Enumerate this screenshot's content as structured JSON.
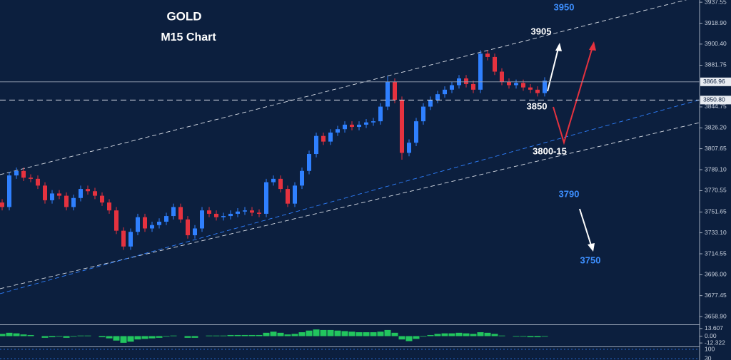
{
  "chart_data": {
    "type": "candlestick",
    "title": "GOLD",
    "subtitle": "M15 Chart",
    "open": [
      3760,
      3756,
      3784,
      3788,
      3782,
      3781,
      3775,
      3762,
      3768,
      3766,
      3756,
      3764,
      3772,
      3770,
      3766,
      3760,
      3753,
      3735,
      3721,
      3734,
      3747,
      3737,
      3740,
      3743,
      3748,
      3756,
      3745,
      3731,
      3737,
      3753,
      3750,
      3747,
      3748,
      3750,
      3752,
      3753,
      3751,
      3750,
      3778,
      3781,
      3772,
      3759,
      3775,
      3788,
      3803,
      3819,
      3814,
      3822,
      3825,
      3829,
      3827,
      3829,
      3831,
      3832,
      3845,
      3867,
      3851,
      3804,
      3813,
      3832,
      3845,
      3851,
      3856,
      3860,
      3864,
      3870,
      3865,
      3860,
      3892,
      3889,
      3876,
      3867,
      3864,
      3866,
      3862,
      3860,
      3857
    ],
    "high": [
      3763,
      3787,
      3791,
      3791,
      3785,
      3784,
      3778,
      3771,
      3771,
      3769,
      3767,
      3775,
      3775,
      3773,
      3769,
      3763,
      3756,
      3738,
      3737,
      3750,
      3750,
      3743,
      3746,
      3751,
      3759,
      3759,
      3748,
      3740,
      3756,
      3756,
      3753,
      3751,
      3753,
      3755,
      3756,
      3756,
      3754,
      3781,
      3784,
      3784,
      3775,
      3778,
      3791,
      3806,
      3822,
      3822,
      3825,
      3828,
      3832,
      3832,
      3832,
      3834,
      3835,
      3848,
      3872,
      3870,
      3854,
      3816,
      3835,
      3848,
      3854,
      3859,
      3863,
      3867,
      3873,
      3873,
      3868,
      3895,
      3895,
      3892,
      3879,
      3870,
      3869,
      3869,
      3865,
      3863,
      3871
    ],
    "low": [
      3753,
      3753,
      3781,
      3779,
      3778,
      3772,
      3759,
      3759,
      3763,
      3753,
      3753,
      3761,
      3767,
      3763,
      3757,
      3750,
      3732,
      3718,
      3718,
      3731,
      3734,
      3734,
      3737,
      3740,
      3745,
      3742,
      3728,
      3728,
      3734,
      3747,
      3744,
      3744,
      3745,
      3747,
      3749,
      3748,
      3747,
      3747,
      3775,
      3769,
      3756,
      3756,
      3772,
      3785,
      3800,
      3811,
      3811,
      3819,
      3822,
      3824,
      3824,
      3826,
      3828,
      3829,
      3842,
      3848,
      3798,
      3801,
      3810,
      3829,
      3842,
      3848,
      3853,
      3857,
      3861,
      3862,
      3857,
      3857,
      3886,
      3873,
      3864,
      3861,
      3861,
      3859,
      3857,
      3854,
      3854
    ],
    "close": [
      3756,
      3784,
      3788,
      3782,
      3781,
      3775,
      3762,
      3768,
      3766,
      3756,
      3764,
      3772,
      3770,
      3766,
      3760,
      3753,
      3735,
      3721,
      3734,
      3747,
      3737,
      3740,
      3743,
      3748,
      3756,
      3745,
      3731,
      3737,
      3753,
      3750,
      3747,
      3748,
      3750,
      3752,
      3753,
      3751,
      3750,
      3778,
      3781,
      3772,
      3759,
      3775,
      3788,
      3803,
      3819,
      3814,
      3822,
      3825,
      3829,
      3827,
      3829,
      3831,
      3832,
      3845,
      3867,
      3851,
      3804,
      3813,
      3832,
      3845,
      3851,
      3856,
      3860,
      3864,
      3870,
      3865,
      3860,
      3892,
      3889,
      3876,
      3867,
      3864,
      3866,
      3862,
      3860,
      3857,
      3868
    ],
    "up_color": "#2f80ff",
    "down_color": "#e5323f",
    "ylim": [
      3652,
      3939.5
    ],
    "yticks": [
      {
        "value": 3937.55,
        "label": "3937.55"
      },
      {
        "value": 3918.9,
        "label": "3918.90"
      },
      {
        "value": 3900.4,
        "label": "3900.40"
      },
      {
        "value": 3881.75,
        "label": "3881.75"
      },
      {
        "value": 3844.75,
        "label": "3844.75"
      },
      {
        "value": 3826.2,
        "label": "3826.20"
      },
      {
        "value": 3807.65,
        "label": "3807.65"
      },
      {
        "value": 3789.1,
        "label": "3789.10"
      },
      {
        "value": 3770.55,
        "label": "3770.55"
      },
      {
        "value": 3751.65,
        "label": "3751.65"
      },
      {
        "value": 3733.1,
        "label": "3733.10"
      },
      {
        "value": 3714.55,
        "label": "3714.55"
      },
      {
        "value": 3696.0,
        "label": "3696.00"
      },
      {
        "value": 3677.45,
        "label": "3677.45"
      },
      {
        "value": 3658.9,
        "label": "3658.90"
      }
    ],
    "current_price": 3866.96,
    "level": {
      "value": 3850.8,
      "label": "3850.80"
    },
    "annotations": [
      "3950",
      "3905",
      "3850",
      "3800-15",
      "3790",
      "3750"
    ],
    "indicator": {
      "type": "bar",
      "color": "#22c55e",
      "values": [
        4,
        6,
        5,
        3,
        2,
        0,
        -3,
        -2,
        -1,
        -3,
        -1,
        1,
        1,
        0,
        -2,
        -4,
        -8,
        -12,
        -10,
        -6,
        -5,
        -4,
        -3,
        -1,
        1,
        0,
        -3,
        -3,
        0,
        1,
        1,
        1,
        2,
        2,
        2,
        2,
        2,
        6,
        8,
        6,
        3,
        4,
        7,
        10,
        12,
        11,
        11,
        10,
        9,
        8,
        7,
        7,
        7,
        8,
        11,
        6,
        -6,
        -9,
        -5,
        -1,
        2,
        4,
        5,
        5,
        6,
        5,
        4,
        7,
        6,
        4,
        1,
        0,
        -1,
        -1,
        -2,
        -2,
        -1
      ],
      "ylim": [
        -18.6,
        19.9
      ],
      "yticks": [
        13.607,
        {
          "value": 0,
          "label": "0.00"
        },
        -12.322
      ]
    },
    "oscillator": {
      "ylim": [
        20,
        116
      ],
      "yticks": [
        100,
        30
      ]
    }
  }
}
